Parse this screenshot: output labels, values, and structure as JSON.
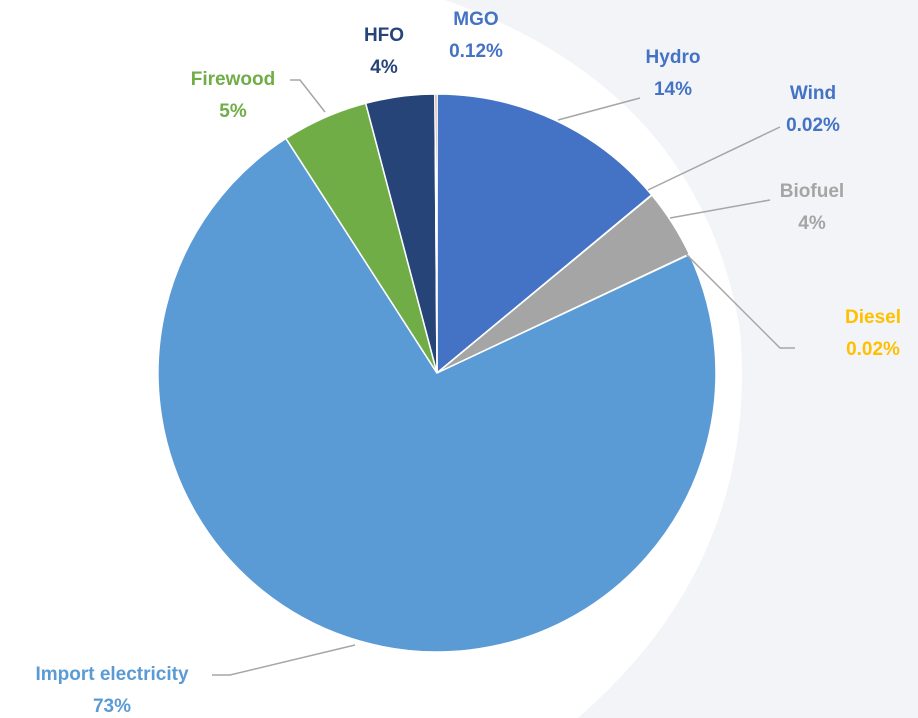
{
  "chart_data": {
    "type": "pie",
    "categories": [
      "Hydro",
      "Wind",
      "Biofuel",
      "Diesel",
      "Import electricity",
      "Firewood",
      "HFO",
      "MGO"
    ],
    "values": [
      14,
      0.02,
      4,
      0.02,
      73,
      5,
      4,
      0.12
    ],
    "value_labels": [
      "14%",
      "0.02%",
      "4%",
      "0.02%",
      "73%",
      "5%",
      "4%",
      "0.12%"
    ],
    "colors": [
      "#4472c4",
      "#4472c4",
      "#a5a5a5",
      "#ffc000",
      "#5b9bd5",
      "#70ad47",
      "#264478",
      "#9e480e"
    ],
    "label_colors": [
      "#4472c4",
      "#4472c4",
      "#a5a5a5",
      "#ffc000",
      "#5b9bd5",
      "#70ad47",
      "#264478",
      "#4472c4"
    ]
  }
}
